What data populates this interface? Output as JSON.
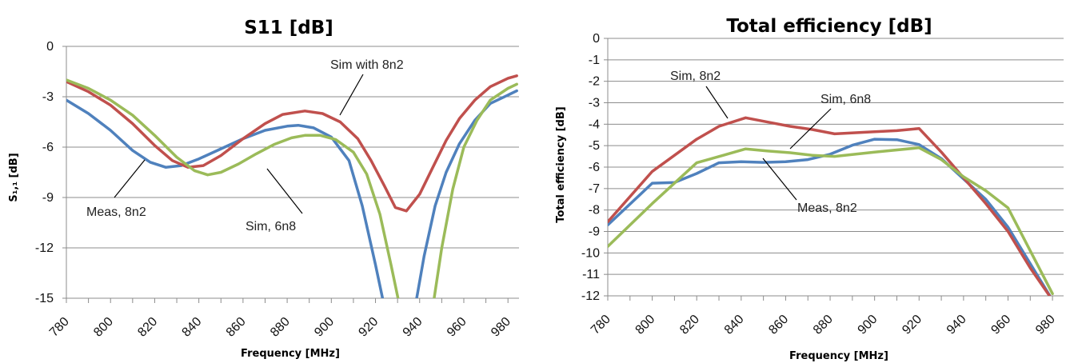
{
  "chart_data": [
    {
      "type": "line",
      "title": "S11 [dB]",
      "xlabel": "Frequency [MHz]",
      "ylabel": "S₁,₁ [dB]",
      "xlim": [
        780,
        985
      ],
      "ylim": [
        -15,
        0
      ],
      "x_ticks": [
        780,
        800,
        820,
        840,
        860,
        880,
        900,
        920,
        940,
        960,
        980
      ],
      "x_tick_labels": [
        "780",
        "800",
        "820",
        "840",
        "860",
        "880",
        "900",
        "920",
        "940",
        "960",
        "980"
      ],
      "y_ticks": [
        0,
        -3,
        -6,
        -9,
        -12,
        -15
      ],
      "y_tick_labels": [
        "0",
        "-3",
        "-6",
        "-9",
        "-12",
        "-15"
      ],
      "grid": true,
      "series": [
        {
          "name": "Meas, 8n2",
          "color": "#4f81bd",
          "points": [
            [
              780,
              -3.2
            ],
            [
              790,
              -4.0
            ],
            [
              800,
              -5.0
            ],
            [
              810,
              -6.2
            ],
            [
              818,
              -6.9
            ],
            [
              825,
              -7.2
            ],
            [
              832,
              -7.1
            ],
            [
              840,
              -6.7
            ],
            [
              850,
              -6.1
            ],
            [
              860,
              -5.5
            ],
            [
              870,
              -5.0
            ],
            [
              880,
              -4.75
            ],
            [
              885,
              -4.7
            ],
            [
              892,
              -4.85
            ],
            [
              900,
              -5.4
            ],
            [
              908,
              -6.8
            ],
            [
              914,
              -9.5
            ],
            [
              920,
              -13.0
            ],
            [
              924,
              -15.5
            ],
            [
              938,
              -15.5
            ],
            [
              942,
              -12.5
            ],
            [
              947,
              -9.5
            ],
            [
              952,
              -7.5
            ],
            [
              958,
              -5.8
            ],
            [
              965,
              -4.4
            ],
            [
              972,
              -3.4
            ],
            [
              980,
              -2.9
            ],
            [
              984,
              -2.65
            ]
          ]
        },
        {
          "name": "Sim with 8n2",
          "color": "#c0504d",
          "points": [
            [
              780,
              -2.1
            ],
            [
              790,
              -2.7
            ],
            [
              800,
              -3.5
            ],
            [
              810,
              -4.6
            ],
            [
              820,
              -5.9
            ],
            [
              828,
              -6.8
            ],
            [
              835,
              -7.2
            ],
            [
              842,
              -7.1
            ],
            [
              850,
              -6.5
            ],
            [
              860,
              -5.5
            ],
            [
              870,
              -4.6
            ],
            [
              878,
              -4.05
            ],
            [
              888,
              -3.85
            ],
            [
              896,
              -4.0
            ],
            [
              904,
              -4.5
            ],
            [
              912,
              -5.5
            ],
            [
              918,
              -6.8
            ],
            [
              924,
              -8.3
            ],
            [
              929,
              -9.6
            ],
            [
              934,
              -9.8
            ],
            [
              940,
              -8.8
            ],
            [
              946,
              -7.2
            ],
            [
              952,
              -5.6
            ],
            [
              958,
              -4.3
            ],
            [
              965,
              -3.2
            ],
            [
              972,
              -2.4
            ],
            [
              980,
              -1.9
            ],
            [
              984,
              -1.75
            ]
          ]
        },
        {
          "name": "Sim, 6n8",
          "color": "#9bbb59",
          "points": [
            [
              780,
              -2.0
            ],
            [
              790,
              -2.5
            ],
            [
              800,
              -3.2
            ],
            [
              810,
              -4.1
            ],
            [
              820,
              -5.3
            ],
            [
              830,
              -6.6
            ],
            [
              838,
              -7.4
            ],
            [
              844,
              -7.65
            ],
            [
              850,
              -7.5
            ],
            [
              858,
              -7.0
            ],
            [
              866,
              -6.4
            ],
            [
              874,
              -5.85
            ],
            [
              882,
              -5.45
            ],
            [
              888,
              -5.3
            ],
            [
              895,
              -5.3
            ],
            [
              902,
              -5.55
            ],
            [
              910,
              -6.3
            ],
            [
              916,
              -7.6
            ],
            [
              922,
              -10.0
            ],
            [
              927,
              -13.0
            ],
            [
              931,
              -15.5
            ],
            [
              946,
              -15.5
            ],
            [
              950,
              -12.0
            ],
            [
              955,
              -8.5
            ],
            [
              960,
              -6.0
            ],
            [
              966,
              -4.4
            ],
            [
              972,
              -3.2
            ],
            [
              980,
              -2.5
            ],
            [
              984,
              -2.25
            ]
          ]
        }
      ],
      "annotations": [
        "Sim with 8n2",
        "Meas, 8n2",
        "Sim, 6n8"
      ]
    },
    {
      "type": "line",
      "title": "Total efficiency [dB]",
      "xlabel": "Frequency [MHz]",
      "ylabel": "Total efficiency [dB]",
      "xlim": [
        780,
        985
      ],
      "ylim": [
        -12,
        0
      ],
      "x_ticks": [
        780,
        800,
        820,
        840,
        860,
        880,
        900,
        920,
        940,
        960,
        980
      ],
      "x_tick_labels": [
        "780",
        "800",
        "820",
        "840",
        "860",
        "880",
        "900",
        "920",
        "940",
        "960",
        "980"
      ],
      "y_ticks": [
        0,
        -1,
        -2,
        -3,
        -4,
        -5,
        -6,
        -7,
        -8,
        -9,
        -10,
        -11,
        -12
      ],
      "y_tick_labels": [
        "0",
        "-1",
        "-2",
        "-3",
        "-4",
        "-5",
        "-6",
        "-7",
        "-8",
        "-9",
        "-10",
        "-11",
        "-12"
      ],
      "grid": true,
      "series": [
        {
          "name": "Meas, 8n2",
          "color": "#4f81bd",
          "points": [
            [
              780,
              -8.7
            ],
            [
              800,
              -6.75
            ],
            [
              810,
              -6.72
            ],
            [
              820,
              -6.3
            ],
            [
              830,
              -5.8
            ],
            [
              840,
              -5.75
            ],
            [
              850,
              -5.78
            ],
            [
              860,
              -5.75
            ],
            [
              870,
              -5.65
            ],
            [
              880,
              -5.4
            ],
            [
              890,
              -4.98
            ],
            [
              900,
              -4.7
            ],
            [
              910,
              -4.72
            ],
            [
              920,
              -4.95
            ],
            [
              930,
              -5.6
            ],
            [
              940,
              -6.55
            ],
            [
              950,
              -7.5
            ],
            [
              960,
              -8.8
            ],
            [
              970,
              -10.5
            ],
            [
              980,
              -12.2
            ]
          ]
        },
        {
          "name": "Sim, 8n2",
          "color": "#c0504d",
          "points": [
            [
              780,
              -8.55
            ],
            [
              800,
              -6.2
            ],
            [
              820,
              -4.7
            ],
            [
              830,
              -4.1
            ],
            [
              842,
              -3.7
            ],
            [
              852,
              -3.9
            ],
            [
              862,
              -4.1
            ],
            [
              872,
              -4.25
            ],
            [
              882,
              -4.45
            ],
            [
              900,
              -4.35
            ],
            [
              910,
              -4.3
            ],
            [
              920,
              -4.2
            ],
            [
              930,
              -5.3
            ],
            [
              940,
              -6.5
            ],
            [
              950,
              -7.7
            ],
            [
              960,
              -9.0
            ],
            [
              970,
              -10.7
            ],
            [
              980,
              -12.2
            ]
          ]
        },
        {
          "name": "Sim, 6n8",
          "color": "#9bbb59",
          "points": [
            [
              780,
              -9.7
            ],
            [
              800,
              -7.7
            ],
            [
              820,
              -5.8
            ],
            [
              832,
              -5.45
            ],
            [
              842,
              -5.15
            ],
            [
              852,
              -5.25
            ],
            [
              862,
              -5.33
            ],
            [
              872,
              -5.45
            ],
            [
              882,
              -5.5
            ],
            [
              900,
              -5.3
            ],
            [
              920,
              -5.1
            ],
            [
              930,
              -5.65
            ],
            [
              940,
              -6.45
            ],
            [
              950,
              -7.1
            ],
            [
              960,
              -7.9
            ],
            [
              970,
              -9.9
            ],
            [
              980,
              -11.9
            ]
          ]
        }
      ],
      "annotations": [
        "Sim, 8n2",
        "Sim, 6n8",
        "Meas, 8n2"
      ]
    }
  ]
}
